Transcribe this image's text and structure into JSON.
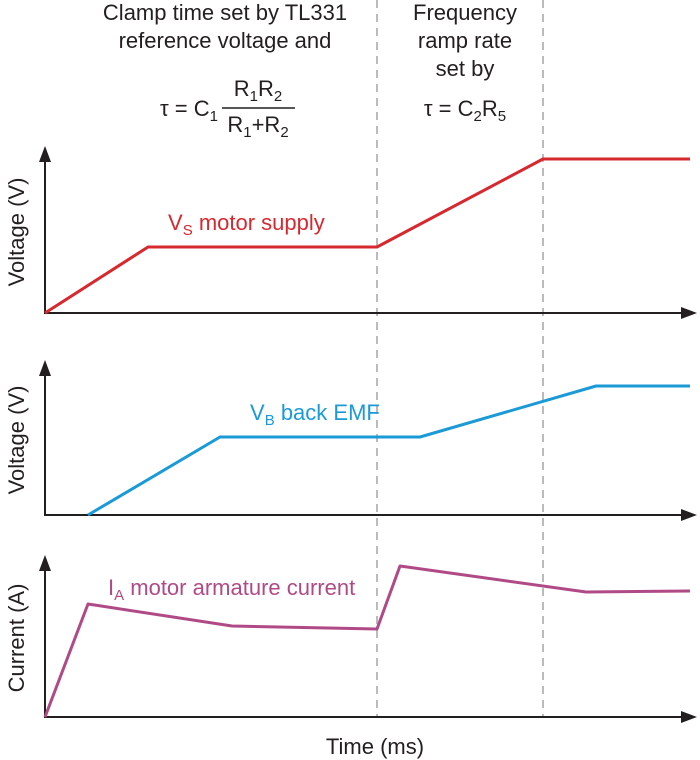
{
  "left_note": {
    "lines": [
      "Clamp time set by TL331",
      "reference voltage and"
    ],
    "formula": {
      "lhs": "τ = C",
      "lhs_sub": "1",
      "numerator": [
        "R",
        "1",
        "R",
        "2"
      ],
      "denominator": [
        "R",
        "1",
        "+R",
        "2"
      ]
    }
  },
  "right_note": {
    "lines": [
      "Frequency",
      "ramp rate",
      "set by"
    ],
    "formula": [
      "τ = C",
      "2",
      "R",
      "5"
    ]
  },
  "panels": [
    {
      "y_label": "Voltage (V)",
      "trace_label": [
        "V",
        "S",
        " motor supply"
      ]
    },
    {
      "y_label": "Voltage (V)",
      "trace_label": [
        "V",
        "B",
        " back EMF"
      ]
    },
    {
      "y_label": "Current (A)",
      "trace_label": [
        "I",
        "A",
        " motor armature current"
      ]
    }
  ],
  "x_label": "Time (ms)"
}
